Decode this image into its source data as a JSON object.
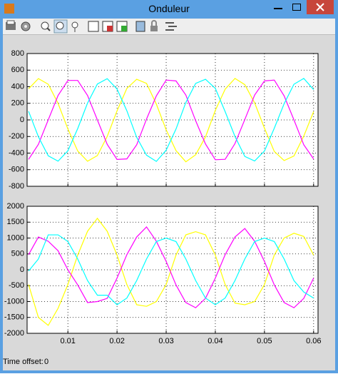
{
  "window": {
    "title": "Onduleur"
  },
  "chart_data": [
    {
      "type": "line",
      "x": [
        0.002,
        0.004,
        0.006,
        0.008,
        0.01,
        0.012,
        0.014,
        0.016,
        0.018,
        0.02,
        0.022,
        0.024,
        0.026,
        0.028,
        0.03,
        0.032,
        0.034,
        0.036,
        0.038,
        0.04,
        0.042,
        0.044,
        0.046,
        0.048,
        0.05,
        0.052,
        0.054,
        0.056,
        0.058,
        0.06
      ],
      "series": [
        {
          "color": "#ffff00",
          "values": [
            375,
            498,
            430,
            199,
            -109,
            -375,
            -498,
            -430,
            -199,
            109,
            380,
            490,
            440,
            190,
            -120,
            -370,
            -505,
            -420,
            -205,
            115,
            370,
            500,
            425,
            205,
            -100,
            -380,
            -490,
            -435,
            -195,
            100
          ]
        },
        {
          "color": "#ff00ff",
          "values": [
            -476,
            -294,
            0,
            294,
            476,
            476,
            294,
            0,
            -294,
            -476,
            -470,
            -300,
            10,
            290,
            480,
            470,
            300,
            -10,
            -290,
            -480,
            -475,
            -285,
            5,
            300,
            470,
            480,
            290,
            0,
            -300,
            -470
          ]
        },
        {
          "color": "#00ffff",
          "values": [
            104,
            -203,
            -433,
            -497,
            -372,
            -104,
            203,
            433,
            497,
            372,
            110,
            -210,
            -425,
            -500,
            -365,
            -110,
            210,
            440,
            490,
            380,
            100,
            -200,
            -440,
            -495,
            -375,
            -100,
            195,
            430,
            500,
            365
          ]
        }
      ],
      "xlim": [
        0.0017,
        0.0609
      ],
      "ylim": [
        -800,
        800
      ],
      "xticks": [
        0.01,
        0.02,
        0.03,
        0.04,
        0.05,
        0.06
      ],
      "yticks": [
        -800,
        -600,
        -400,
        -200,
        0,
        200,
        400,
        600,
        800
      ],
      "xtick_labels": false,
      "grid": true
    },
    {
      "type": "line",
      "x": [
        0.002,
        0.004,
        0.006,
        0.008,
        0.01,
        0.012,
        0.014,
        0.016,
        0.018,
        0.02,
        0.022,
        0.024,
        0.026,
        0.028,
        0.03,
        0.032,
        0.034,
        0.036,
        0.038,
        0.04,
        0.042,
        0.044,
        0.046,
        0.048,
        0.05,
        0.052,
        0.054,
        0.056,
        0.058,
        0.06
      ],
      "series": [
        {
          "color": "#ffff00",
          "values": [
            -464,
            -1500,
            -1750,
            -1214,
            -464,
            464,
            1214,
            1620,
            1214,
            464,
            -464,
            -1100,
            -1150,
            -1000,
            -464,
            464,
            1100,
            1200,
            1100,
            464,
            -464,
            -1050,
            -1100,
            -1000,
            -464,
            464,
            1000,
            1150,
            1050,
            464
          ]
        },
        {
          "color": "#ff00ff",
          "values": [
            476,
            1033,
            900,
            600,
            0,
            -476,
            -1033,
            -1000,
            -900,
            -262,
            476,
            1033,
            1350,
            900,
            262,
            -476,
            -1033,
            -1195,
            -900,
            -262,
            476,
            1033,
            1300,
            900,
            262,
            -476,
            -1033,
            -1195,
            -900,
            -262
          ]
        },
        {
          "color": "#00ffff",
          "values": [
            -40,
            340,
            1100,
            1100,
            890,
            340,
            -340,
            -800,
            -800,
            -1100,
            -890,
            -340,
            340,
            890,
            1000,
            890,
            340,
            -340,
            -890,
            -1100,
            -890,
            -340,
            340,
            890,
            1000,
            890,
            340,
            -340,
            -700,
            -890
          ]
        }
      ],
      "xlim": [
        0.0017,
        0.0609
      ],
      "ylim": [
        -2000,
        2000
      ],
      "xticks": [
        0.01,
        0.02,
        0.03,
        0.04,
        0.05,
        0.06
      ],
      "yticks": [
        -2000,
        -1500,
        -1000,
        -500,
        0,
        500,
        1000,
        1500,
        2000
      ],
      "xtick_labels": true,
      "grid": true
    }
  ],
  "footer": {
    "label": "Time offset:",
    "value": "0"
  }
}
